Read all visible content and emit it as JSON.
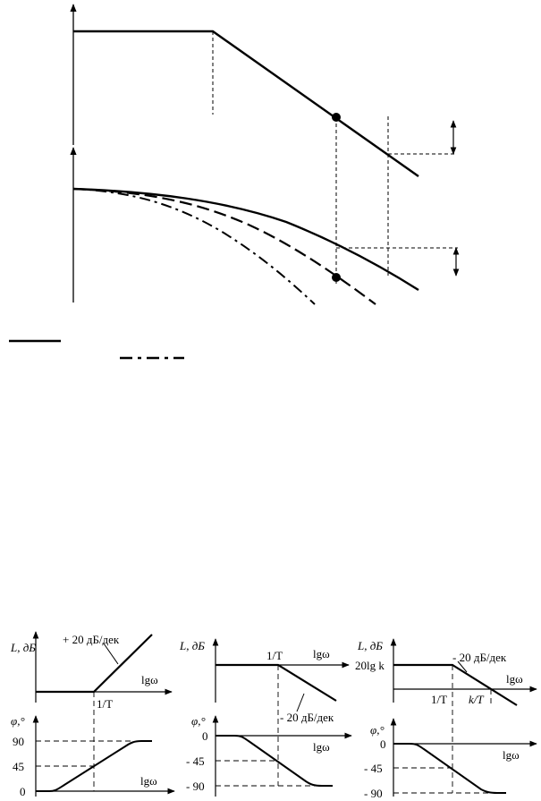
{
  "top_figure": {
    "legend": {
      "solid_line": "",
      "dashdot_line": ""
    }
  },
  "bottom_panels": [
    {
      "amp_ylabel": "L, дБ",
      "amp_xlabel": "lgω",
      "slope_label": "+ 20 дБ/дек",
      "break_label": "1/T",
      "phase_ylabel": "φ,°",
      "phase_xlabel": "lgω",
      "phase_ticks": [
        "90",
        "45",
        "0"
      ]
    },
    {
      "amp_ylabel": "L, дБ",
      "amp_xlabel": "lgω",
      "slope_label": "- 20 дБ/дек",
      "break_label": "1/T",
      "phase_ylabel": "φ,°",
      "phase_xlabel": "lgω",
      "phase_ticks": [
        "0",
        "- 45",
        "- 90"
      ]
    },
    {
      "amp_ylabel": "L, дБ",
      "amp_xlabel": "lgω",
      "slope_label": "- 20 дБ/дек",
      "level_label": "20lg k",
      "break_label_1": "1/T",
      "break_label_2": "k/T",
      "phase_ylabel": "φ,°",
      "phase_xlabel": "lgω",
      "phase_ticks": [
        "0",
        "- 45",
        "- 90"
      ]
    }
  ]
}
